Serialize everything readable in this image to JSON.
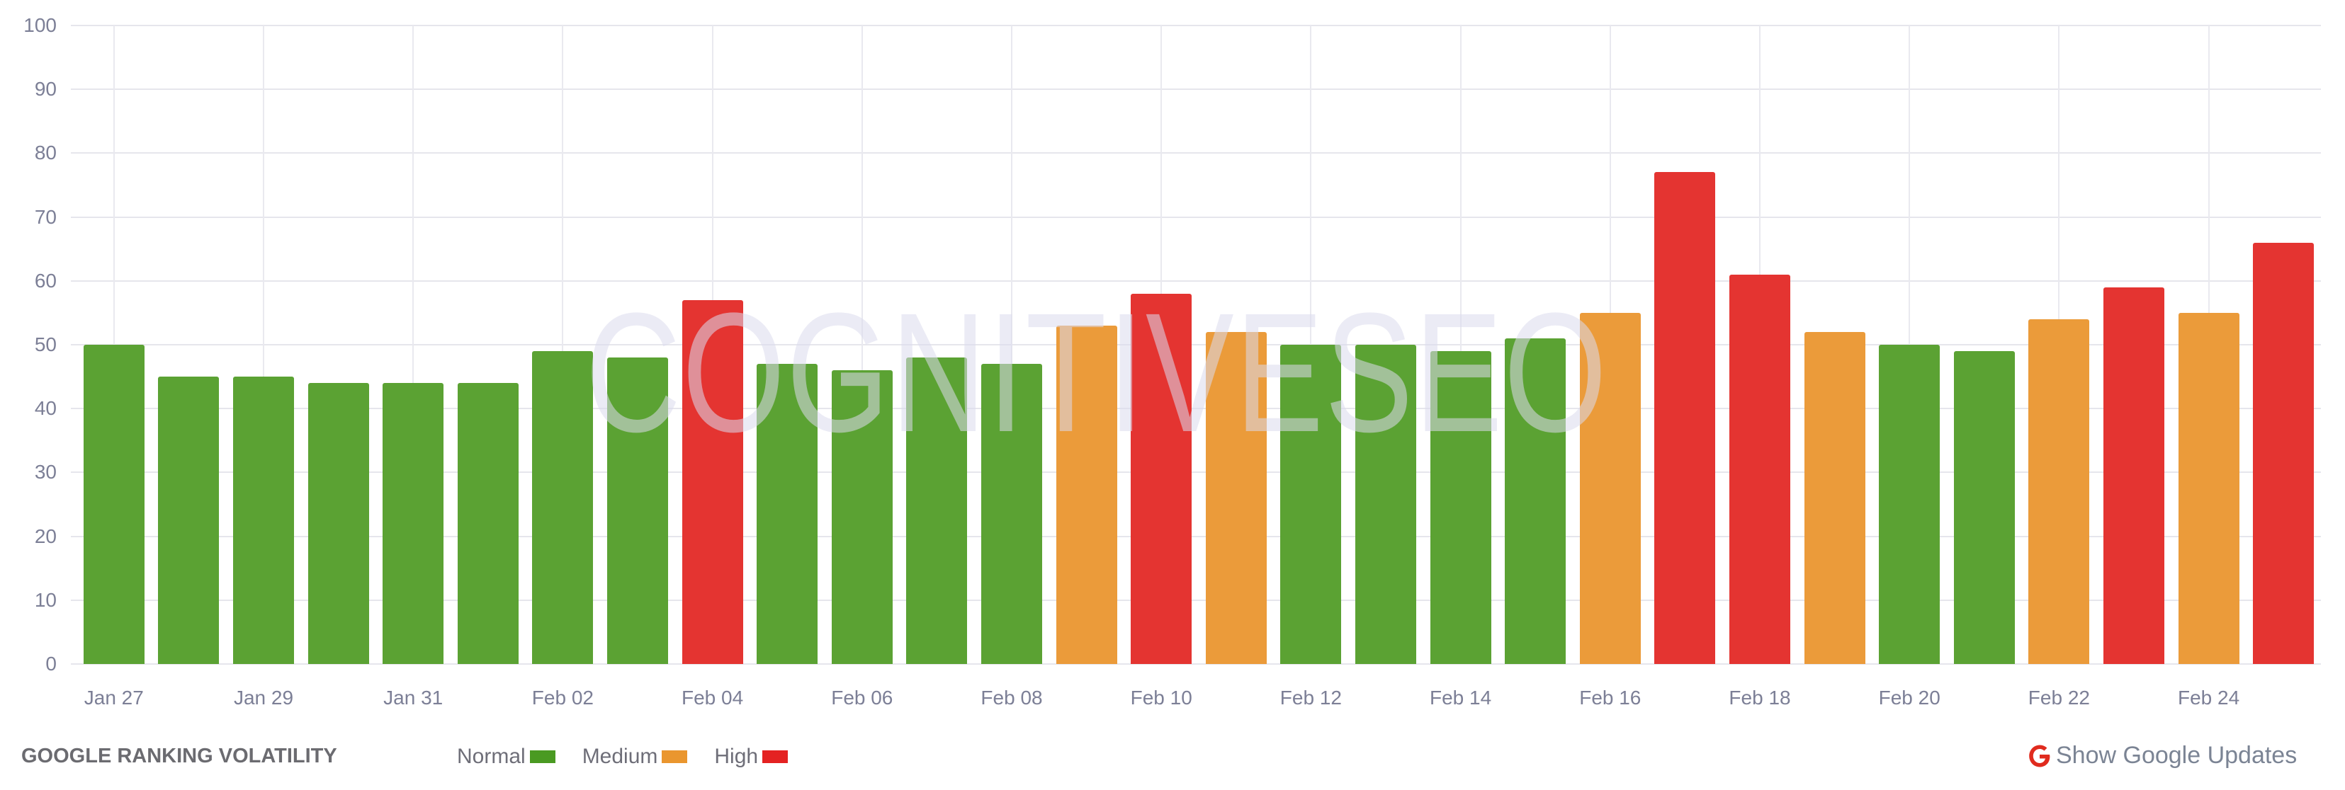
{
  "chart_data": {
    "type": "bar",
    "title": "GOOGLE RANKING VOLATILITY",
    "xlabel": "",
    "ylabel": "",
    "ylim": [
      0,
      100
    ],
    "yticks": [
      0,
      10,
      20,
      30,
      40,
      50,
      60,
      70,
      80,
      90,
      100
    ],
    "grid": true,
    "legend_position": "bottom-left",
    "categories": [
      "Jan 27",
      "Jan 28",
      "Jan 29",
      "Jan 30",
      "Jan 31",
      "Feb 01",
      "Feb 02",
      "Feb 03",
      "Feb 04",
      "Feb 05",
      "Feb 06",
      "Feb 07",
      "Feb 08",
      "Feb 09",
      "Feb 10",
      "Feb 11",
      "Feb 12",
      "Feb 13",
      "Feb 14",
      "Feb 15",
      "Feb 16",
      "Feb 17",
      "Feb 18",
      "Feb 19",
      "Feb 20",
      "Feb 21",
      "Feb 22",
      "Feb 23",
      "Feb 24",
      "Feb 25"
    ],
    "xtick_labels": [
      "Jan 27",
      "Jan 29",
      "Jan 31",
      "Feb 02",
      "Feb 04",
      "Feb 06",
      "Feb 08",
      "Feb 10",
      "Feb 12",
      "Feb 14",
      "Feb 16",
      "Feb 18",
      "Feb 20",
      "Feb 22",
      "Feb 24"
    ],
    "values": [
      50,
      45,
      45,
      44,
      44,
      44,
      49,
      48,
      57,
      47,
      46,
      48,
      47,
      53,
      58,
      52,
      50,
      50,
      49,
      51,
      55,
      77,
      61,
      52,
      50,
      49,
      54,
      59,
      55,
      66
    ],
    "levels": [
      "normal",
      "normal",
      "normal",
      "normal",
      "normal",
      "normal",
      "normal",
      "normal",
      "high",
      "normal",
      "normal",
      "normal",
      "normal",
      "medium",
      "high",
      "medium",
      "normal",
      "normal",
      "normal",
      "normal",
      "medium",
      "high",
      "high",
      "medium",
      "normal",
      "normal",
      "medium",
      "high",
      "medium",
      "high"
    ],
    "legend": [
      {
        "key": "normal",
        "label": "Normal",
        "color": "#4a9a22"
      },
      {
        "key": "medium",
        "label": "Medium",
        "color": "#ea962e"
      },
      {
        "key": "high",
        "label": "High",
        "color": "#e42222"
      }
    ],
    "bar_colors": {
      "normal": "#5ba233",
      "medium": "#eb9b3a",
      "high": "#e43431"
    },
    "watermark": "COGNITIVESEO"
  },
  "footer": {
    "title": "GOOGLE RANKING VOLATILITY",
    "google_updates_label": "Show Google Updates",
    "google_icon": "google-g-icon"
  }
}
